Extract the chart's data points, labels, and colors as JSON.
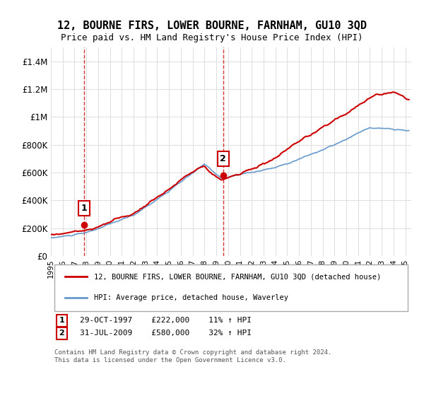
{
  "title": "12, BOURNE FIRS, LOWER BOURNE, FARNHAM, GU10 3QD",
  "subtitle": "Price paid vs. HM Land Registry's House Price Index (HPI)",
  "xlim": [
    1995.0,
    2025.5
  ],
  "ylim": [
    0,
    1500000
  ],
  "yticks": [
    0,
    200000,
    400000,
    600000,
    800000,
    1000000,
    1200000,
    1400000
  ],
  "ytick_labels": [
    "£0",
    "£200K",
    "£400K",
    "£600K",
    "£800K",
    "£1M",
    "£1.2M",
    "£1.4M"
  ],
  "sale1_date": 1997.83,
  "sale1_price": 222000,
  "sale1_label": "1",
  "sale1_text": "29-OCT-1997    £222,000    11% ↑ HPI",
  "sale2_date": 2009.58,
  "sale2_price": 580000,
  "sale2_label": "2",
  "sale2_text": "31-JUL-2009    £580,000    32% ↑ HPI",
  "legend_line1": "12, BOURNE FIRS, LOWER BOURNE, FARNHAM, GU10 3QD (detached house)",
  "legend_line2": "HPI: Average price, detached house, Waverley",
  "footer": "Contains HM Land Registry data © Crown copyright and database right 2024.\nThis data is licensed under the Open Government Licence v3.0.",
  "price_color": "#cc0000",
  "hpi_color": "#6699cc",
  "vline_color": "#cc0000",
  "background_color": "#ffffff",
  "grid_color": "#dddddd"
}
